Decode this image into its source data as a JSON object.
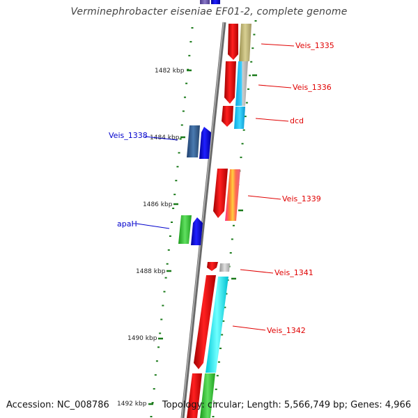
{
  "title": "Verminephrobacter eiseniae EF01-2, complete genome",
  "footer": {
    "accession": "Accession: NC_008786",
    "topology": "Topology: circular; Length: 5,566,749 bp; Genes: 4,966"
  },
  "kbp_ticks": [
    "1482 kbp",
    "1484 kbp",
    "1486 kbp",
    "1488 kbp",
    "1490 kbp",
    "1492 kbp"
  ],
  "gene_labels": [
    {
      "text": "Veis_1335",
      "color": "#e00000"
    },
    {
      "text": "Veis_1336",
      "color": "#e00000"
    },
    {
      "text": "dcd",
      "color": "#e00000"
    },
    {
      "text": "Veis_1338",
      "color": "#0000cc"
    },
    {
      "text": "Veis_1339",
      "color": "#e00000"
    },
    {
      "text": "apaH",
      "color": "#0000cc"
    },
    {
      "text": "Veis_1341",
      "color": "#e00000"
    },
    {
      "text": "Veis_1342",
      "color": "#e00000"
    }
  ],
  "colors": {
    "forward_strand": "#e00000",
    "reverse_strand": "#0000cc",
    "backbone": "#888888",
    "tick_marks": "#1a7a1a"
  }
}
